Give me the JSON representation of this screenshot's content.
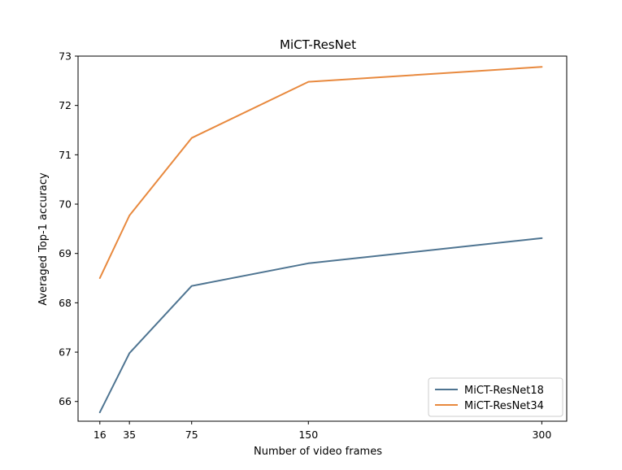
{
  "chart_data": {
    "type": "line",
    "title": "MiCT-ResNet",
    "xlabel": "Number of video frames",
    "ylabel": "Averaged Top-1 accuracy",
    "x": [
      16,
      35,
      75,
      150,
      300
    ],
    "xticks": [
      16,
      35,
      75,
      150,
      300
    ],
    "xlim": [
      2,
      316
    ],
    "ylim": [
      65.6,
      73.0
    ],
    "yticks": [
      66,
      67,
      68,
      69,
      70,
      71,
      72,
      73
    ],
    "grid": false,
    "legend_position": "lower-right",
    "series": [
      {
        "name": "MiCT-ResNet18",
        "color": "#4e7491",
        "values": [
          65.78,
          66.98,
          68.34,
          68.8,
          69.31
        ]
      },
      {
        "name": "MiCT-ResNet34",
        "color": "#e8893e",
        "values": [
          68.5,
          69.77,
          71.34,
          72.48,
          72.78
        ]
      }
    ]
  }
}
